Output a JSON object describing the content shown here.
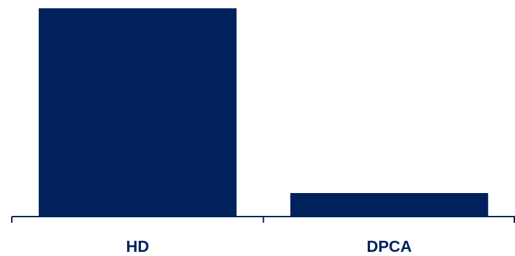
{
  "chart_data": {
    "type": "bar",
    "categories": [
      "HD",
      "DPCA"
    ],
    "values": [
      100,
      11.3
    ],
    "title": "",
    "xlabel": "",
    "ylabel": "",
    "ylim": [
      0,
      100
    ],
    "grid": false,
    "legend": "none"
  },
  "colors": {
    "bar": "#00215b",
    "axis": "#00215b",
    "label": "#00215b"
  }
}
